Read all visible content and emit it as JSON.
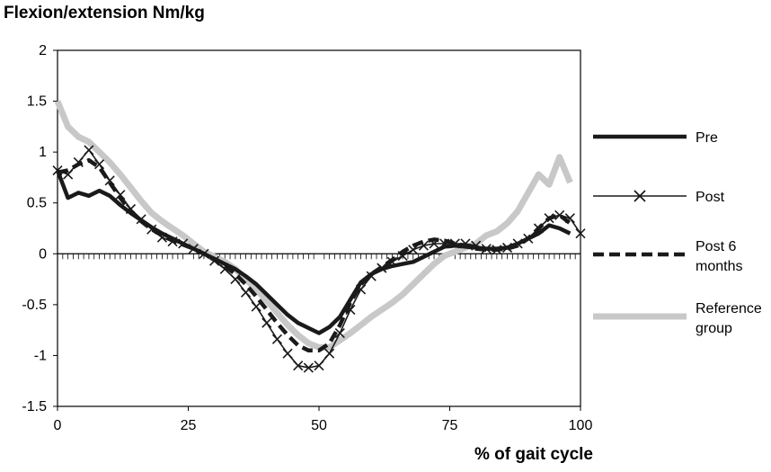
{
  "chart_data": {
    "type": "line",
    "ylabel": "Flexion/extension Nm/kg",
    "xlabel": "% of gait cycle",
    "xlim": [
      0,
      100
    ],
    "ylim": [
      -1.5,
      2
    ],
    "xticks": [
      "0",
      "25",
      "50",
      "75",
      "100"
    ],
    "yticks": [
      "2",
      "1.5",
      "1",
      "0.5",
      "0",
      "-0.5",
      "-1",
      "-1.5"
    ],
    "legend_position": "right",
    "series": [
      {
        "name": "Pre",
        "color": "#1a1a1a",
        "style": "thick-solid",
        "x": [
          0,
          2,
          4,
          6,
          8,
          10,
          12,
          14,
          16,
          18,
          20,
          22,
          24,
          26,
          28,
          30,
          32,
          34,
          36,
          38,
          40,
          42,
          44,
          46,
          48,
          50,
          52,
          54,
          56,
          58,
          60,
          62,
          64,
          66,
          68,
          70,
          72,
          74,
          76,
          78,
          80,
          82,
          84,
          86,
          88,
          90,
          92,
          94,
          96,
          98
        ],
        "y": [
          0.82,
          0.55,
          0.6,
          0.57,
          0.62,
          0.57,
          0.48,
          0.4,
          0.33,
          0.26,
          0.2,
          0.15,
          0.1,
          0.05,
          0,
          -0.05,
          -0.1,
          -0.15,
          -0.22,
          -0.3,
          -0.4,
          -0.5,
          -0.6,
          -0.68,
          -0.73,
          -0.78,
          -0.72,
          -0.62,
          -0.45,
          -0.28,
          -0.2,
          -0.15,
          -0.12,
          -0.1,
          -0.08,
          -0.03,
          0.02,
          0.07,
          0.08,
          0.07,
          0.06,
          0.05,
          0.05,
          0.06,
          0.1,
          0.15,
          0.2,
          0.28,
          0.25,
          0.2
        ]
      },
      {
        "name": "Post",
        "color": "#1a1a1a",
        "style": "thin-x-marker",
        "x": [
          0,
          2,
          4,
          6,
          8,
          10,
          12,
          14,
          16,
          18,
          20,
          22,
          24,
          26,
          28,
          30,
          32,
          34,
          36,
          38,
          40,
          42,
          44,
          46,
          48,
          50,
          52,
          54,
          56,
          58,
          60,
          62,
          64,
          66,
          68,
          70,
          72,
          74,
          76,
          78,
          80,
          82,
          84,
          86,
          88,
          90,
          92,
          94,
          96,
          98,
          100
        ],
        "y": [
          0.82,
          0.78,
          0.9,
          1.02,
          0.88,
          0.72,
          0.58,
          0.44,
          0.34,
          0.24,
          0.16,
          0.12,
          0.1,
          0.05,
          0,
          -0.07,
          -0.15,
          -0.25,
          -0.38,
          -0.52,
          -0.68,
          -0.84,
          -0.98,
          -1.1,
          -1.12,
          -1.1,
          -0.98,
          -0.78,
          -0.55,
          -0.35,
          -0.22,
          -0.14,
          -0.08,
          -0.02,
          0.04,
          0.08,
          0.1,
          0.1,
          0.1,
          0.1,
          0.08,
          0.05,
          0.04,
          0.06,
          0.1,
          0.15,
          0.25,
          0.35,
          0.38,
          0.35,
          0.2
        ]
      },
      {
        "name": "Post 6 months",
        "color": "#1a1a1a",
        "style": "thick-dashed",
        "x": [
          0,
          2,
          4,
          6,
          8,
          10,
          12,
          14,
          16,
          18,
          20,
          22,
          24,
          26,
          28,
          30,
          32,
          34,
          36,
          38,
          40,
          42,
          44,
          46,
          48,
          50,
          52,
          54,
          56,
          58,
          60,
          62,
          64,
          66,
          68,
          70,
          72,
          74,
          76,
          78,
          80,
          82,
          84,
          86,
          88,
          90,
          92,
          94,
          96,
          98
        ],
        "y": [
          0.8,
          0.82,
          0.88,
          0.92,
          0.85,
          0.7,
          0.55,
          0.42,
          0.32,
          0.24,
          0.18,
          0.13,
          0.09,
          0.05,
          0,
          -0.06,
          -0.12,
          -0.2,
          -0.3,
          -0.42,
          -0.55,
          -0.68,
          -0.8,
          -0.9,
          -0.95,
          -0.95,
          -0.88,
          -0.7,
          -0.48,
          -0.3,
          -0.2,
          -0.13,
          -0.06,
          0.02,
          0.08,
          0.12,
          0.14,
          0.13,
          0.1,
          0.08,
          0.05,
          0.04,
          0.04,
          0.05,
          0.08,
          0.15,
          0.25,
          0.35,
          0.38,
          0.3
        ]
      },
      {
        "name": "Reference group",
        "color": "#c8c8c8",
        "style": "very-thick-solid",
        "x": [
          0,
          2,
          4,
          6,
          8,
          10,
          12,
          14,
          16,
          18,
          20,
          22,
          24,
          26,
          28,
          30,
          32,
          34,
          36,
          38,
          40,
          42,
          44,
          46,
          48,
          50,
          52,
          54,
          56,
          58,
          60,
          62,
          64,
          66,
          68,
          70,
          72,
          74,
          76,
          78,
          80,
          82,
          84,
          86,
          88,
          90,
          92,
          94,
          96,
          98
        ],
        "y": [
          1.5,
          1.25,
          1.15,
          1.1,
          1.0,
          0.9,
          0.78,
          0.65,
          0.52,
          0.4,
          0.32,
          0.25,
          0.18,
          0.1,
          0.02,
          -0.03,
          -0.08,
          -0.15,
          -0.25,
          -0.35,
          -0.46,
          -0.58,
          -0.7,
          -0.8,
          -0.88,
          -0.92,
          -0.92,
          -0.85,
          -0.78,
          -0.7,
          -0.62,
          -0.55,
          -0.48,
          -0.4,
          -0.3,
          -0.2,
          -0.1,
          -0.02,
          0.02,
          0.06,
          0.1,
          0.18,
          0.22,
          0.3,
          0.42,
          0.6,
          0.78,
          0.68,
          0.95,
          0.7
        ]
      }
    ]
  }
}
